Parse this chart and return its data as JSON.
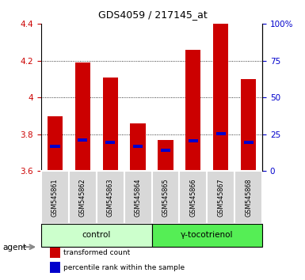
{
  "title": "GDS4059 / 217145_at",
  "samples": [
    "GSM545861",
    "GSM545862",
    "GSM545863",
    "GSM545864",
    "GSM545865",
    "GSM545866",
    "GSM545867",
    "GSM545868"
  ],
  "red_values": [
    3.9,
    4.19,
    4.11,
    3.86,
    3.77,
    4.26,
    4.4,
    4.1
  ],
  "blue_values": [
    3.735,
    3.77,
    3.755,
    3.735,
    3.715,
    3.765,
    3.805,
    3.755
  ],
  "bar_bottom": 3.6,
  "ylim": [
    3.6,
    4.4
  ],
  "yticks_left": [
    3.6,
    3.8,
    4.0,
    4.2,
    4.4
  ],
  "ytick_labels_left": [
    "3.6",
    "3.8",
    "4",
    "4.2",
    "4.4"
  ],
  "yticks_right_pct": [
    0,
    25,
    50,
    75,
    100
  ],
  "ytick_labels_right": [
    "0",
    "25",
    "50",
    "75",
    "100%"
  ],
  "groups": [
    {
      "label": "control",
      "indices": [
        0,
        1,
        2,
        3
      ],
      "color": "#ccffcc",
      "border": "#aaddaa"
    },
    {
      "label": "γ-tocotrienol",
      "indices": [
        4,
        5,
        6,
        7
      ],
      "color": "#55ee55",
      "border": "#33bb33"
    }
  ],
  "agent_label": "agent",
  "red_color": "#cc0000",
  "blue_color": "#0000cc",
  "bar_width": 0.55,
  "blue_bar_width": 0.35,
  "blue_bar_height": 0.018,
  "background_color": "#ffffff",
  "plot_bg_color": "#ffffff",
  "legend_items": [
    {
      "color": "#cc0000",
      "label": "transformed count"
    },
    {
      "color": "#0000cc",
      "label": "percentile rank within the sample"
    }
  ]
}
